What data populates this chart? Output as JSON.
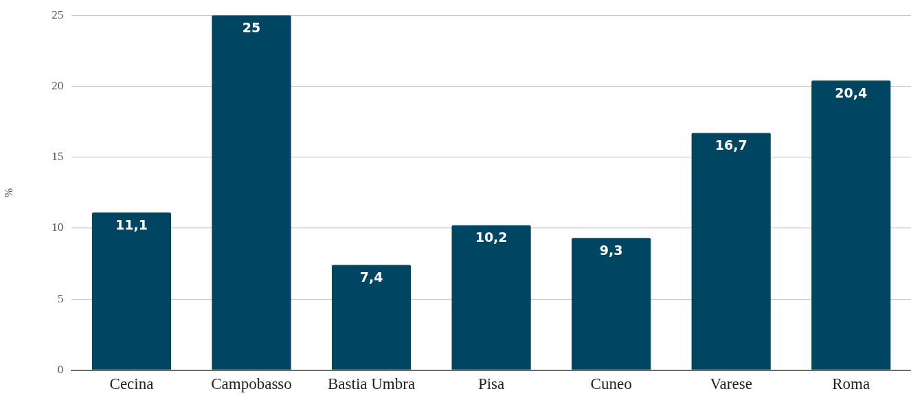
{
  "chart_data": {
    "type": "bar",
    "ylabel": "%",
    "categories": [
      "Cecina",
      "Campobasso",
      "Bastia Umbra",
      "Pisa",
      "Cuneo",
      "Varese",
      "Roma"
    ],
    "values": [
      11.1,
      25,
      7.4,
      10.2,
      9.3,
      16.7,
      20.4
    ],
    "value_labels": [
      "11,1",
      "25",
      "7,4",
      "10,2",
      "9,3",
      "16,7",
      "20,4"
    ],
    "color": "#004561",
    "ylim": [
      0,
      25
    ],
    "yticks": [
      0,
      5,
      10,
      15,
      20,
      25
    ],
    "grid": "y",
    "legend": false
  }
}
